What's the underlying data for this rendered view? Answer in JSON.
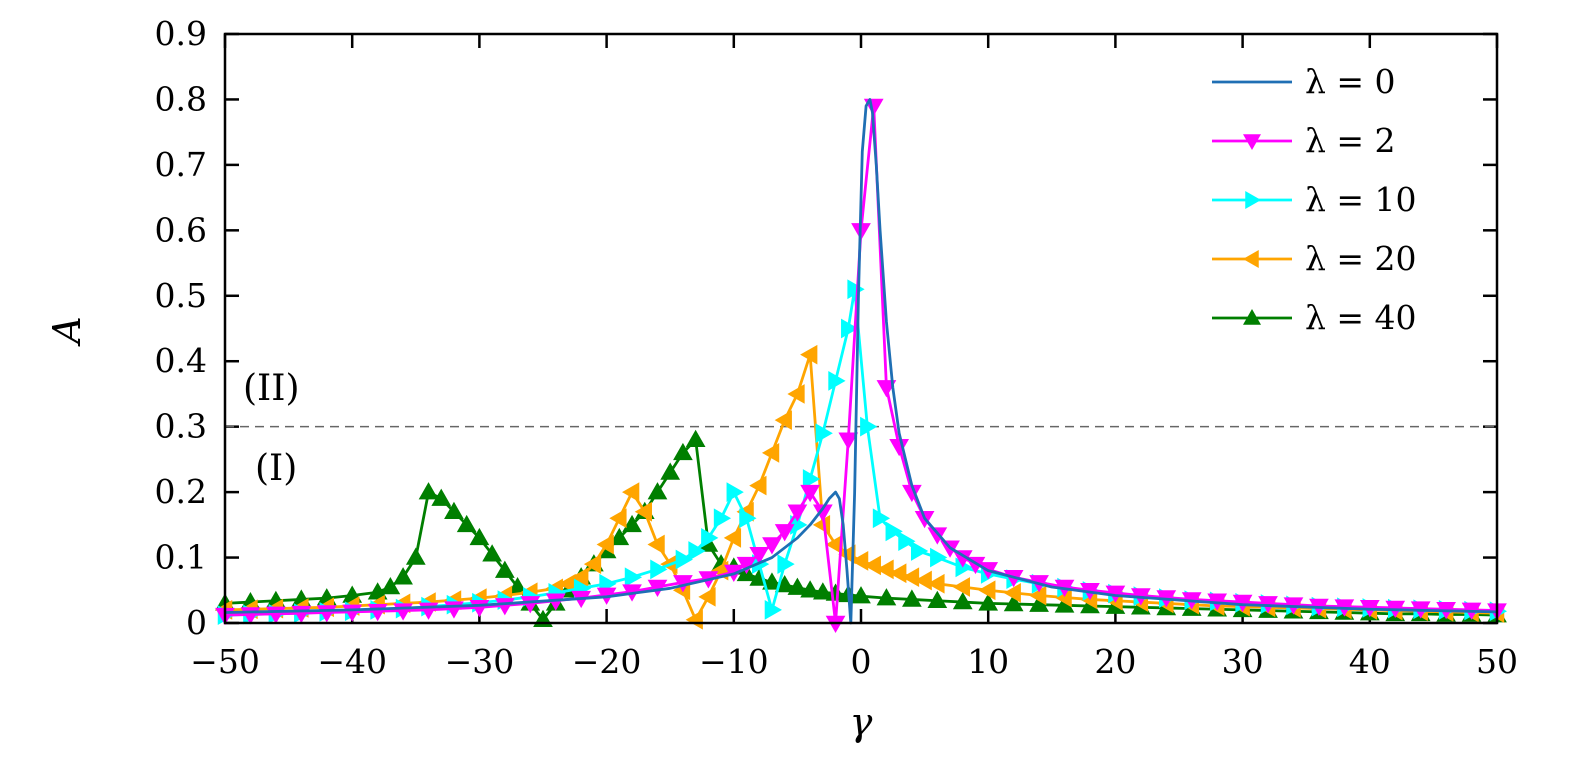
{
  "chart_data": {
    "type": "line",
    "title": "",
    "xlabel": "γ",
    "ylabel": "A",
    "xlim": [
      -50,
      50
    ],
    "ylim": [
      0,
      0.9
    ],
    "x_ticks": [
      -50,
      -40,
      -30,
      -20,
      -10,
      0,
      10,
      20,
      30,
      40,
      50
    ],
    "x_tick_labels": [
      "−50",
      "−40",
      "−30",
      "−20",
      "−10",
      "0",
      "10",
      "20",
      "30",
      "40",
      "50"
    ],
    "y_ticks": [
      0,
      0.1,
      0.2,
      0.3,
      0.4,
      0.5,
      0.6,
      0.7,
      0.8,
      0.9
    ],
    "y_tick_labels": [
      "0",
      "0.1",
      "0.2",
      "0.3",
      "0.4",
      "0.5",
      "0.6",
      "0.7",
      "0.8",
      "0.9"
    ],
    "grid": false,
    "legend_position": "top-right",
    "reference_line": {
      "y": 0.3,
      "style": "dashed",
      "color": "#666666"
    },
    "annotations": [
      {
        "text": "(II)",
        "region": "above reference line"
      },
      {
        "text": "(I)",
        "region": "below reference line"
      }
    ],
    "series": [
      {
        "name": "λ = 0",
        "color": "#1f6fb4",
        "marker": "none",
        "x": [
          -50,
          -40,
          -30,
          -20,
          -15,
          -10,
          -7,
          -5,
          -4,
          -3,
          -2.5,
          -2,
          -1.7,
          -1.4,
          -1.1,
          -0.8,
          -0.5,
          -0.2,
          0.1,
          0.4,
          0.7,
          0.9,
          1.2,
          1.5,
          2,
          2.5,
          3,
          4,
          5,
          7,
          10,
          15,
          20,
          30,
          40,
          50
        ],
        "y": [
          0.016,
          0.02,
          0.027,
          0.04,
          0.053,
          0.075,
          0.1,
          0.13,
          0.15,
          0.175,
          0.19,
          0.2,
          0.19,
          0.15,
          0.08,
          0,
          0.2,
          0.5,
          0.72,
          0.79,
          0.8,
          0.78,
          0.7,
          0.6,
          0.46,
          0.36,
          0.29,
          0.21,
          0.16,
          0.115,
          0.08,
          0.055,
          0.042,
          0.028,
          0.021,
          0.017
        ]
      },
      {
        "name": "λ = 2",
        "color": "#ff00ff",
        "marker": "triangle-down",
        "x": [
          -50,
          -48,
          -46,
          -44,
          -42,
          -40,
          -38,
          -36,
          -34,
          -32,
          -30,
          -28,
          -26,
          -24,
          -22,
          -20,
          -18,
          -16,
          -14,
          -12,
          -10,
          -9,
          -8,
          -7,
          -6,
          -5,
          -4,
          -3,
          -2,
          -1,
          0,
          1,
          2,
          3,
          4,
          5,
          6,
          7,
          8,
          9,
          10,
          12,
          14,
          16,
          18,
          20,
          22,
          24,
          26,
          28,
          30,
          32,
          34,
          36,
          38,
          40,
          42,
          44,
          46,
          48,
          50
        ],
        "y": [
          0.012,
          0.013,
          0.014,
          0.015,
          0.016,
          0.017,
          0.018,
          0.019,
          0.02,
          0.022,
          0.024,
          0.027,
          0.03,
          0.034,
          0.038,
          0.043,
          0.048,
          0.055,
          0.062,
          0.068,
          0.078,
          0.09,
          0.105,
          0.12,
          0.14,
          0.17,
          0.2,
          0.17,
          0,
          0.28,
          0.6,
          0.79,
          0.36,
          0.27,
          0.2,
          0.16,
          0.135,
          0.115,
          0.1,
          0.09,
          0.082,
          0.07,
          0.062,
          0.055,
          0.05,
          0.046,
          0.042,
          0.039,
          0.036,
          0.034,
          0.032,
          0.03,
          0.028,
          0.026,
          0.025,
          0.024,
          0.023,
          0.022,
          0.021,
          0.02,
          0.019
        ]
      },
      {
        "name": "λ = 10",
        "color": "#00ffff",
        "marker": "triangle-right",
        "x": [
          -50,
          -48,
          -46,
          -44,
          -42,
          -40,
          -38,
          -36,
          -34,
          -32,
          -30,
          -28,
          -26,
          -24,
          -22,
          -20,
          -18,
          -16,
          -14,
          -13,
          -12,
          -11,
          -10,
          -9,
          -8,
          -7,
          -6,
          -5,
          -4,
          -3,
          -2,
          -1,
          -0.5,
          0.5,
          1.5,
          2.5,
          3.5,
          4.5,
          6,
          8,
          10,
          12,
          14,
          16,
          18,
          20,
          22,
          24,
          26,
          28,
          30,
          32,
          34,
          36,
          38,
          40,
          42,
          44,
          46,
          48,
          50
        ],
        "y": [
          0.012,
          0.013,
          0.014,
          0.015,
          0.017,
          0.018,
          0.02,
          0.022,
          0.025,
          0.028,
          0.031,
          0.035,
          0.04,
          0.046,
          0.053,
          0.06,
          0.07,
          0.082,
          0.097,
          0.11,
          0.13,
          0.16,
          0.2,
          0.16,
          0.09,
          0.02,
          0.09,
          0.15,
          0.22,
          0.29,
          0.37,
          0.45,
          0.51,
          0.3,
          0.16,
          0.14,
          0.125,
          0.11,
          0.1,
          0.085,
          0.075,
          0.067,
          0.06,
          0.054,
          0.049,
          0.045,
          0.041,
          0.038,
          0.035,
          0.033,
          0.031,
          0.029,
          0.027,
          0.025,
          0.024,
          0.023,
          0.022,
          0.021,
          0.02,
          0.019,
          0.018
        ]
      },
      {
        "name": "λ = 20",
        "color": "#ffa500",
        "marker": "triangle-left",
        "x": [
          -50,
          -48,
          -46,
          -44,
          -42,
          -40,
          -38,
          -36,
          -34,
          -32,
          -30,
          -28,
          -26,
          -24,
          -23,
          -22,
          -21,
          -20,
          -19,
          -18,
          -17,
          -16,
          -15,
          -14,
          -13,
          -12,
          -11,
          -10,
          -9,
          -8,
          -7,
          -6,
          -5,
          -4,
          -3,
          -2,
          -1,
          0,
          1,
          2,
          3,
          4,
          5,
          6,
          8,
          10,
          12,
          14,
          16,
          18,
          20,
          22,
          24,
          26,
          28,
          30,
          32,
          34,
          36,
          38,
          40,
          42,
          44,
          46,
          48,
          50
        ],
        "y": [
          0.02,
          0.021,
          0.022,
          0.023,
          0.024,
          0.026,
          0.028,
          0.03,
          0.032,
          0.035,
          0.038,
          0.042,
          0.047,
          0.053,
          0.06,
          0.07,
          0.09,
          0.12,
          0.16,
          0.2,
          0.17,
          0.12,
          0.09,
          0.05,
          0.005,
          0.04,
          0.08,
          0.13,
          0.17,
          0.21,
          0.26,
          0.31,
          0.35,
          0.41,
          0.15,
          0.12,
          0.105,
          0.095,
          0.088,
          0.082,
          0.076,
          0.07,
          0.065,
          0.06,
          0.055,
          0.05,
          0.046,
          0.042,
          0.039,
          0.036,
          0.034,
          0.032,
          0.03,
          0.028,
          0.026,
          0.025,
          0.024,
          0.023,
          0.022,
          0.021,
          0.02,
          0.019,
          0.018,
          0.017,
          0.016,
          0.015
        ]
      },
      {
        "name": "λ = 40",
        "color": "#007f00",
        "marker": "triangle-up",
        "x": [
          -50,
          -48,
          -46,
          -44,
          -42,
          -40,
          -38,
          -37,
          -36,
          -35,
          -34,
          -33,
          -32,
          -31,
          -30,
          -29,
          -28,
          -27,
          -26,
          -25,
          -24,
          -23,
          -22,
          -21,
          -20,
          -19,
          -18,
          -17,
          -16,
          -15,
          -14,
          -13,
          -12,
          -11,
          -10,
          -9,
          -8,
          -7,
          -6,
          -5,
          -4,
          -3,
          -2,
          -1,
          0,
          2,
          4,
          6,
          8,
          10,
          12,
          14,
          16,
          18,
          20,
          22,
          24,
          26,
          28,
          30,
          32,
          34,
          36,
          38,
          40,
          42,
          44,
          46,
          48,
          50
        ],
        "y": [
          0.03,
          0.032,
          0.034,
          0.036,
          0.038,
          0.042,
          0.047,
          0.055,
          0.07,
          0.1,
          0.2,
          0.19,
          0.17,
          0.15,
          0.13,
          0.105,
          0.08,
          0.055,
          0.03,
          0.005,
          0.03,
          0.05,
          0.07,
          0.09,
          0.11,
          0.13,
          0.15,
          0.17,
          0.2,
          0.23,
          0.26,
          0.28,
          0.12,
          0.09,
          0.085,
          0.075,
          0.068,
          0.062,
          0.058,
          0.054,
          0.05,
          0.047,
          0.045,
          0.043,
          0.041,
          0.038,
          0.036,
          0.034,
          0.032,
          0.03,
          0.029,
          0.028,
          0.027,
          0.026,
          0.025,
          0.024,
          0.023,
          0.022,
          0.021,
          0.02,
          0.019,
          0.018,
          0.017,
          0.016,
          0.015,
          0.014,
          0.014,
          0.013,
          0.013,
          0.012
        ]
      }
    ]
  }
}
